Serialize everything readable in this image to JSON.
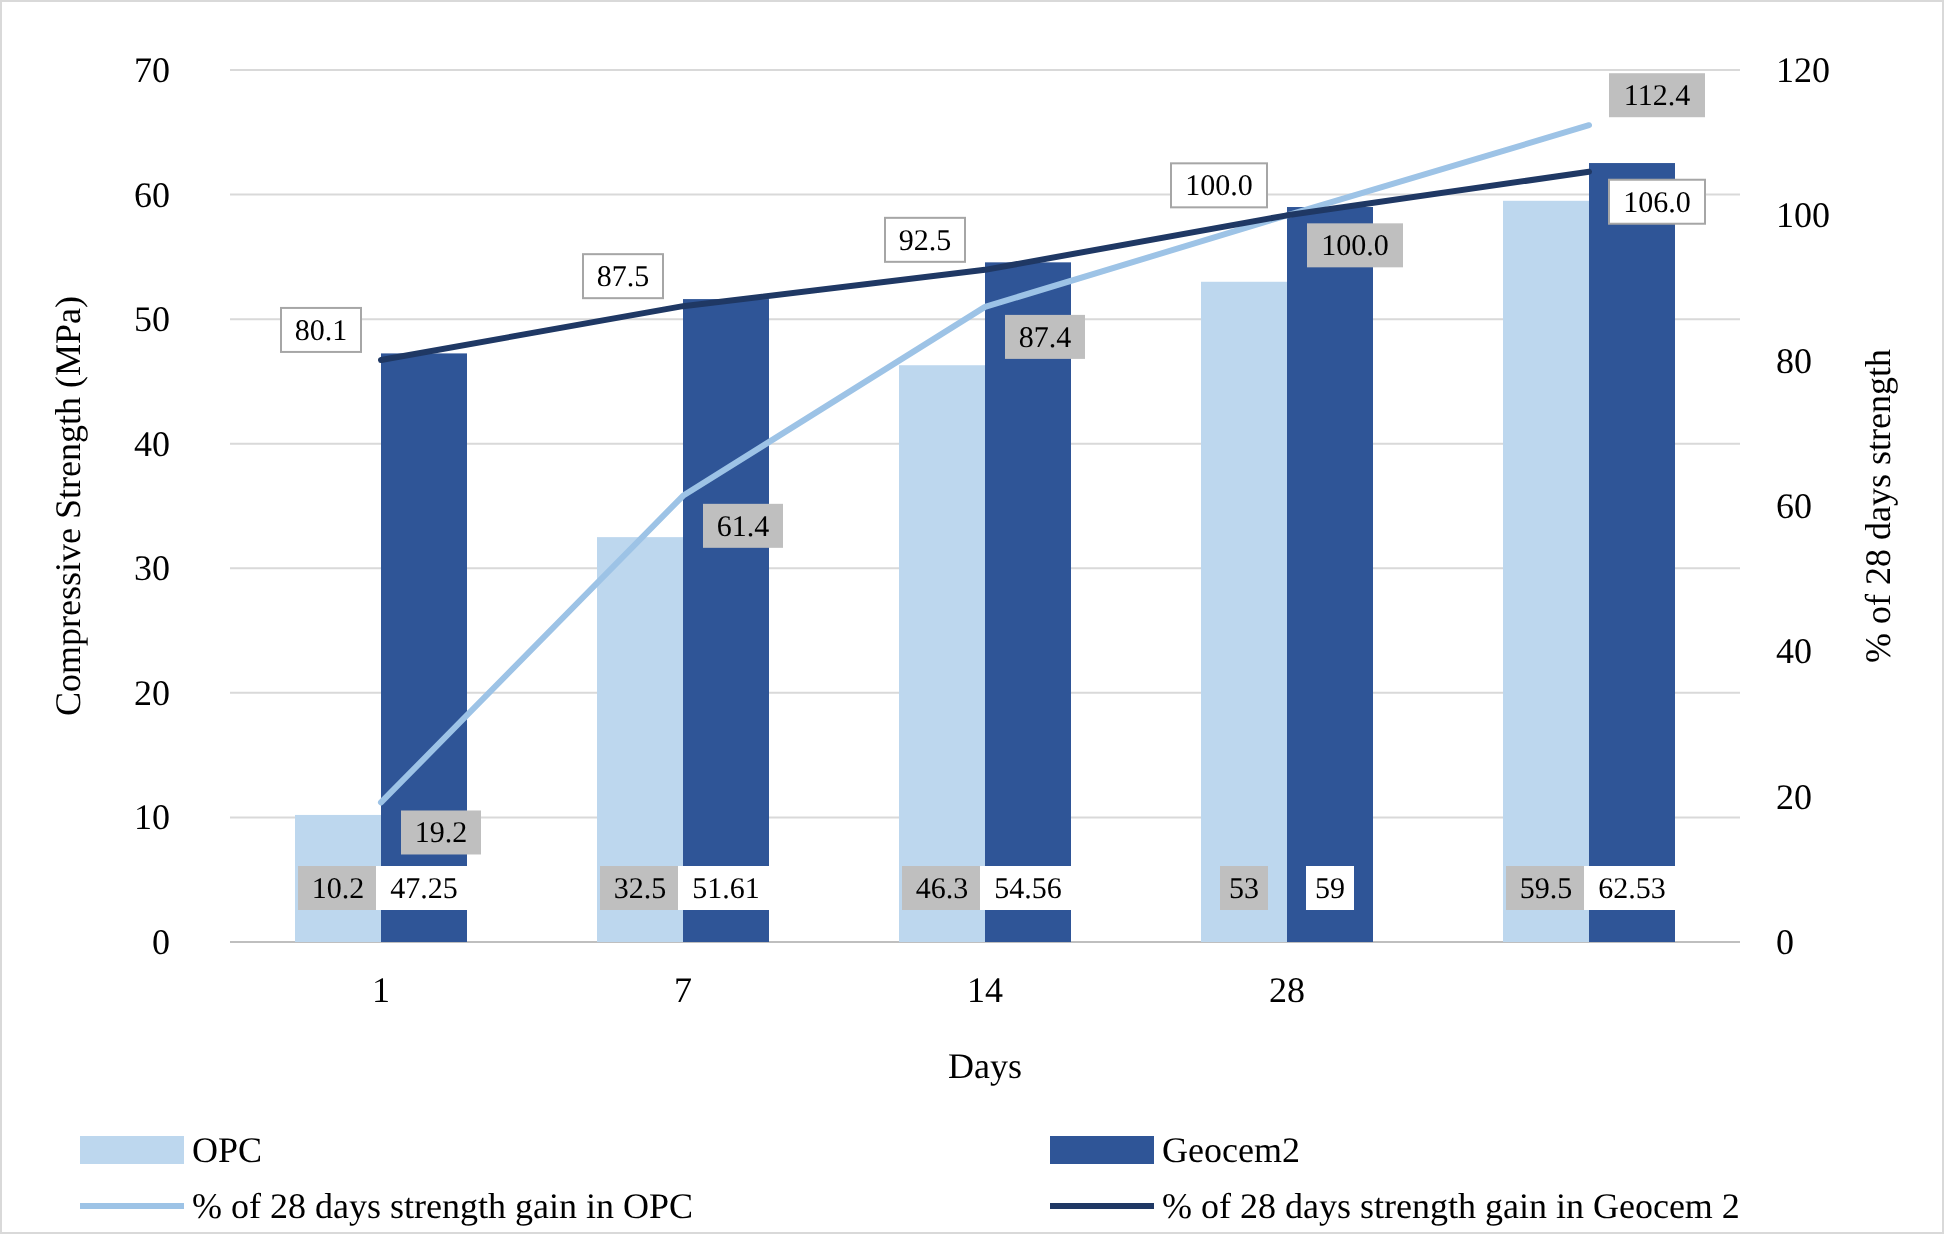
{
  "chart_data": {
    "type": "bar",
    "xlabel": "Days",
    "ylabel": "Compressive Strength (MPa)",
    "y2label": "% of 28 days strength",
    "categories": [
      "1",
      "7",
      "14",
      "28",
      null
    ],
    "series": [
      {
        "name": "OPC",
        "color": "#bdd7ee",
        "values": [
          10.2,
          32.5,
          46.3,
          53,
          59.5
        ],
        "value_labels": [
          "10.2",
          "32.5",
          "46.3",
          "53",
          "59.5"
        ]
      },
      {
        "name": "Geocem2",
        "color": "#2f5597",
        "values": [
          47.25,
          51.61,
          54.56,
          59,
          62.53
        ],
        "value_labels": [
          "47.25",
          "51.61",
          "54.56",
          "59",
          "62.53"
        ]
      },
      {
        "name": "% of 28 days strength gain in OPC",
        "type": "line",
        "axis": "y2",
        "color": "#9dc3e6",
        "values": [
          19.2,
          61.4,
          87.4,
          100.0,
          112.4
        ],
        "value_labels": [
          "19.2",
          "61.4",
          "87.4",
          "100.0",
          "112.4"
        ]
      },
      {
        "name": "% of 28 days strength gain in Geocem 2",
        "type": "line",
        "axis": "y2",
        "color": "#1f3864",
        "values": [
          80.1,
          87.5,
          92.5,
          100.0,
          106.0
        ],
        "value_labels": [
          "80.1",
          "87.5",
          "92.5",
          "100.0",
          "106.0"
        ]
      }
    ],
    "ylim": [
      0,
      70
    ],
    "yticks": [
      0,
      10,
      20,
      30,
      40,
      50,
      60,
      70
    ],
    "y2lim": [
      0,
      120
    ],
    "y2ticks": [
      0,
      20,
      40,
      60,
      80,
      100,
      120
    ],
    "grid": "y",
    "legend": "bottom",
    "marker": "none",
    "line_style": "solid"
  }
}
